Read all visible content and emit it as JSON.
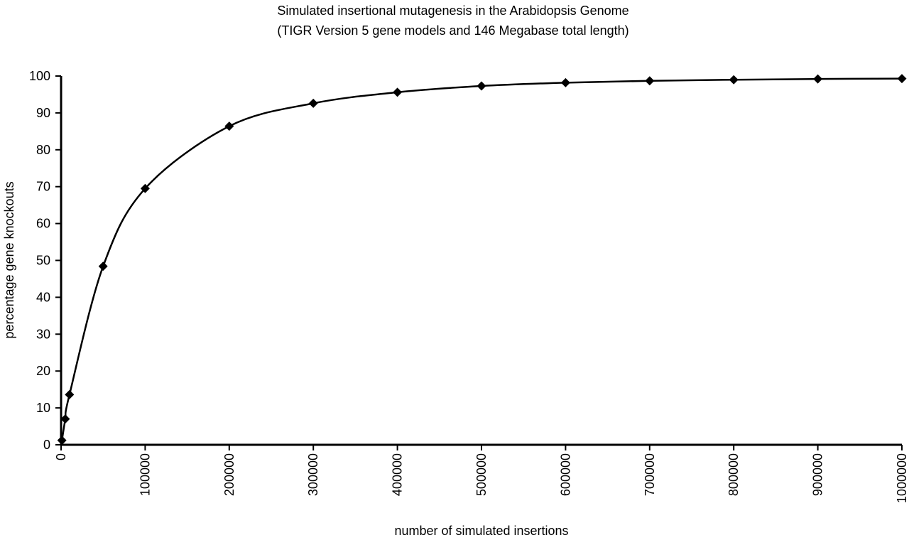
{
  "chart_data": {
    "type": "line",
    "title": "Simulated insertional mutagenesis in the Arabidopsis Genome",
    "subtitle": "(TIGR Version 5 gene models and 146 Megabase total length)",
    "xlabel": "number of simulated insertions",
    "ylabel": "percentage gene knockouts",
    "xlim": [
      0,
      1000000
    ],
    "ylim": [
      0,
      100
    ],
    "x_ticks": [
      "0",
      "100000",
      "200000",
      "300000",
      "400000",
      "500000",
      "600000",
      "700000",
      "800000",
      "900000",
      "1000000"
    ],
    "y_ticks": [
      "0",
      "10",
      "20",
      "30",
      "40",
      "50",
      "60",
      "70",
      "80",
      "90",
      "100"
    ],
    "grid": false,
    "legend": "none",
    "marker": "diamond",
    "line_color": "#000000",
    "series": [
      {
        "x": [
          1000,
          5000,
          10000,
          50000,
          100000,
          200000,
          300000,
          400000,
          500000,
          600000,
          700000,
          800000,
          900000,
          1000000
        ],
        "y": [
          1.2,
          7.0,
          13.6,
          48.4,
          69.5,
          86.4,
          92.6,
          95.6,
          97.3,
          98.2,
          98.7,
          99.0,
          99.2,
          99.3
        ]
      }
    ]
  }
}
